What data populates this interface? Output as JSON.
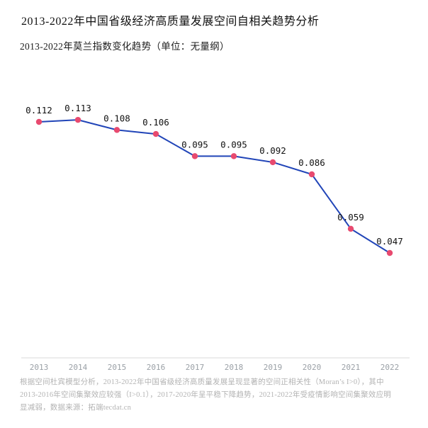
{
  "page": {
    "title": "2013-2022年中国省级经济高质量发展空间自相关趋势分析",
    "subtitle": "2013-2022年莫兰指数变化趋势（单位：无量纲）",
    "footer": "根据空间杜宾模型分析，2013-2022年中国省级经济高质量发展呈现显著的空间正相关性（Moran’s I>0），其中2013-2016年空间集聚效应较强（I>0.1），2017-2020年呈平稳下降趋势，2021-2022年受疫情影响空间集聚效应明显减弱，数据来源：拓端tecdat.cn"
  },
  "chart_data": {
    "type": "line",
    "title": "2013-2022年中国省级经济高质量发展空间自相关趋势分析",
    "subtitle": "2013-2022年莫兰指数变化趋势（单位：无量纲）",
    "x": [
      "2013",
      "2014",
      "2015",
      "2016",
      "2017",
      "2018",
      "2019",
      "2020",
      "2021",
      "2022"
    ],
    "series": [
      {
        "name": "莫兰指数 (Moran's I)",
        "values": [
          0.112,
          0.113,
          0.108,
          0.106,
          0.095,
          0.095,
          0.092,
          0.086,
          0.059,
          0.047
        ]
      }
    ],
    "value_labels": [
      "0.112",
      "0.113",
      "0.108",
      "0.106",
      "0.095",
      "0.095",
      "0.092",
      "0.086",
      "0.059",
      "0.047"
    ],
    "xlabel": "",
    "ylabel": "",
    "ylim": [
      -0.005,
      0.125
    ],
    "grid": false,
    "legend_position": "none",
    "colors": {
      "line": "#2145b8",
      "marker": "#e84a6f",
      "axis": "#d9d9d9",
      "tick_label": "#9aa0a6",
      "data_label": "#111111"
    }
  }
}
